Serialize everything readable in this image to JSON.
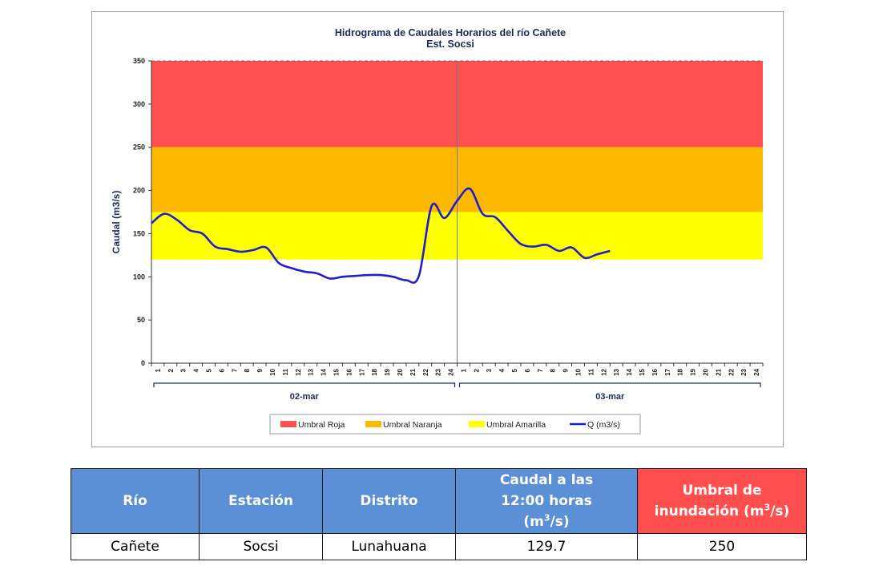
{
  "chart_data": {
    "type": "line",
    "title": "Hidrograma de Caudales Horarios del río Cañete",
    "subtitle": "Est. Socsi",
    "ylabel": "Caudal  (m3/s)",
    "xlabel": "",
    "ylim": [
      0,
      350
    ],
    "yticks": [
      0,
      50,
      100,
      150,
      200,
      250,
      300,
      350
    ],
    "day_labels": [
      "02-mar",
      "03-mar"
    ],
    "hour_ticks": [
      "1",
      "2",
      "3",
      "4",
      "5",
      "6",
      "7",
      "8",
      "9",
      "10",
      "11",
      "12",
      "13",
      "14",
      "15",
      "16",
      "17",
      "18",
      "19",
      "20",
      "21",
      "22",
      "23",
      "24"
    ],
    "bands": [
      {
        "name": "Umbral Roja",
        "from": 250,
        "to": 350,
        "color": "#ff4f4f"
      },
      {
        "name": "Umbral Naranja",
        "from": 175,
        "to": 250,
        "color": "#ffb800"
      },
      {
        "name": "Umbral Amarilla",
        "from": 120,
        "to": 175,
        "color": "#ffff00"
      }
    ],
    "series": [
      {
        "name": "Q (m3/s)",
        "color": "#1f1fcf",
        "x": [
          "02-mar 00",
          "02-mar 01",
          "02-mar 02",
          "02-mar 03",
          "02-mar 04",
          "02-mar 05",
          "02-mar 06",
          "02-mar 07",
          "02-mar 08",
          "02-mar 09",
          "02-mar 10",
          "02-mar 11",
          "02-mar 12",
          "02-mar 13",
          "02-mar 14",
          "02-mar 15",
          "02-mar 16",
          "02-mar 17",
          "02-mar 18",
          "02-mar 19",
          "02-mar 20",
          "02-mar 21",
          "02-mar 22",
          "02-mar 23",
          "02-mar 24",
          "03-mar 01",
          "03-mar 02",
          "03-mar 03",
          "03-mar 04",
          "03-mar 05",
          "03-mar 06",
          "03-mar 07",
          "03-mar 08",
          "03-mar 09",
          "03-mar 10",
          "03-mar 11",
          "03-mar 12"
        ],
        "values": [
          162,
          173,
          166,
          154,
          150,
          135,
          132,
          129,
          131,
          134,
          116,
          110,
          106,
          104,
          98,
          100,
          101,
          102,
          102,
          100,
          96,
          101,
          182,
          168,
          188,
          202,
          173,
          169,
          153,
          138,
          135,
          137,
          130,
          134,
          122,
          126,
          130
        ]
      }
    ],
    "legend": [
      "Umbral Roja",
      "Umbral Naranja",
      "Umbral Amarilla",
      "Q (m3/s)"
    ],
    "legend_position": "bottom",
    "grid": false
  },
  "table": {
    "headers": {
      "rio": "Río",
      "estacion": "Estación",
      "distrito": "Distrito",
      "caudal_line1": "Caudal a las",
      "caudal_line2": "12:00 horas",
      "caudal_unit_pre": "(m",
      "caudal_unit_sup": "3",
      "caudal_unit_post": "/s)",
      "umbral_line1": "Umbral de",
      "umbral_line2_pre": "inundación (m",
      "umbral_line2_sup": "3",
      "umbral_line2_post": "/s)"
    },
    "row": {
      "rio": "Cañete",
      "estacion": "Socsi",
      "distrito": "Lunahuana",
      "caudal": "129.7",
      "umbral": "250"
    },
    "colors": {
      "header": "#5b8fd6",
      "threshold_header": "#ff4e4e"
    }
  }
}
